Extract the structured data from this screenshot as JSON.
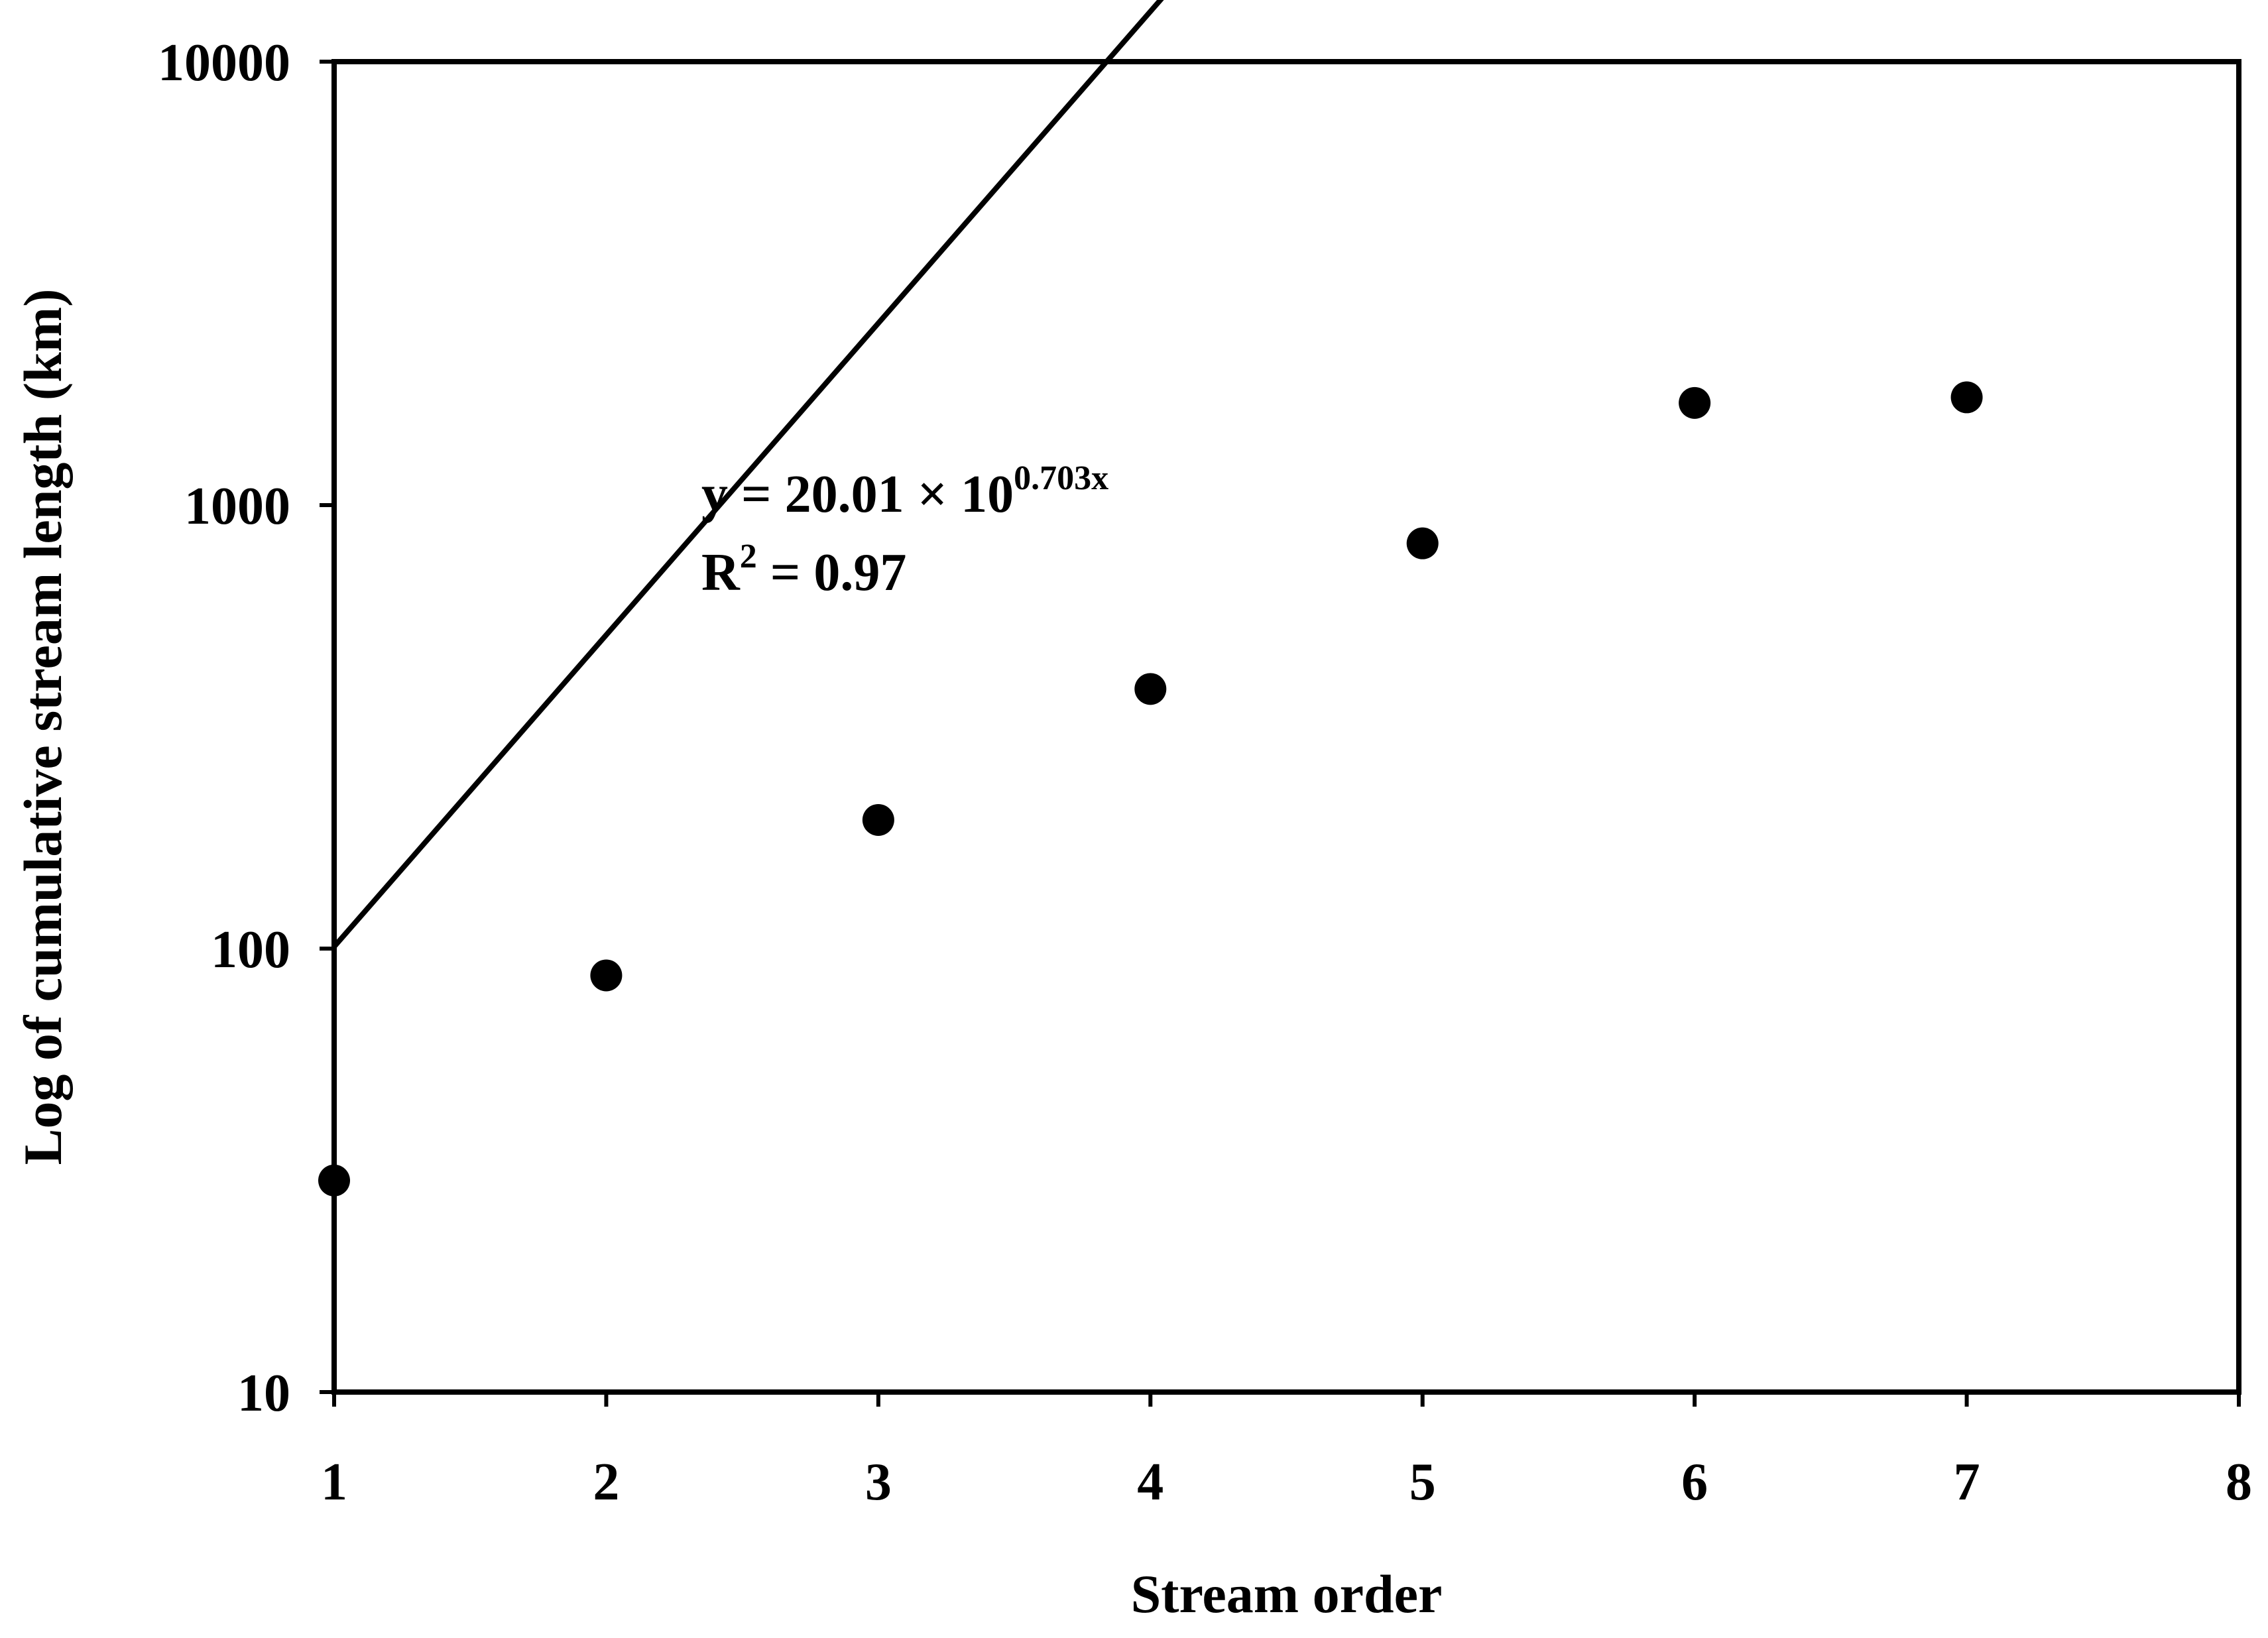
{
  "chart_data": {
    "type": "scatter",
    "title": "",
    "xlabel": "Stream order",
    "ylabel": "Log of cumulative stream length (km)",
    "xlim": [
      1,
      8
    ],
    "ylim": [
      10,
      10000
    ],
    "y_scale": "log",
    "grid": false,
    "x_ticks": [
      "1",
      "2",
      "3",
      "4",
      "5",
      "6",
      "7",
      "8"
    ],
    "y_ticks": [
      "10",
      "100",
      "1000",
      "10000"
    ],
    "points": [
      {
        "x": 1,
        "y": 30
      },
      {
        "x": 2,
        "y": 87
      },
      {
        "x": 3,
        "y": 195
      },
      {
        "x": 4,
        "y": 385
      },
      {
        "x": 5,
        "y": 820
      },
      {
        "x": 6,
        "y": 1700
      },
      {
        "x": 7,
        "y": 1750
      }
    ],
    "trendline": {
      "a": 20.01,
      "b": 0.703,
      "x_range": [
        1,
        8
      ]
    },
    "annotation": {
      "equation_base": "y = 20.01 × 10",
      "equation_exponent": "0.703x",
      "r2_prefix": "R",
      "r2_sup": "2",
      "r2_rest": " = 0.97"
    }
  }
}
